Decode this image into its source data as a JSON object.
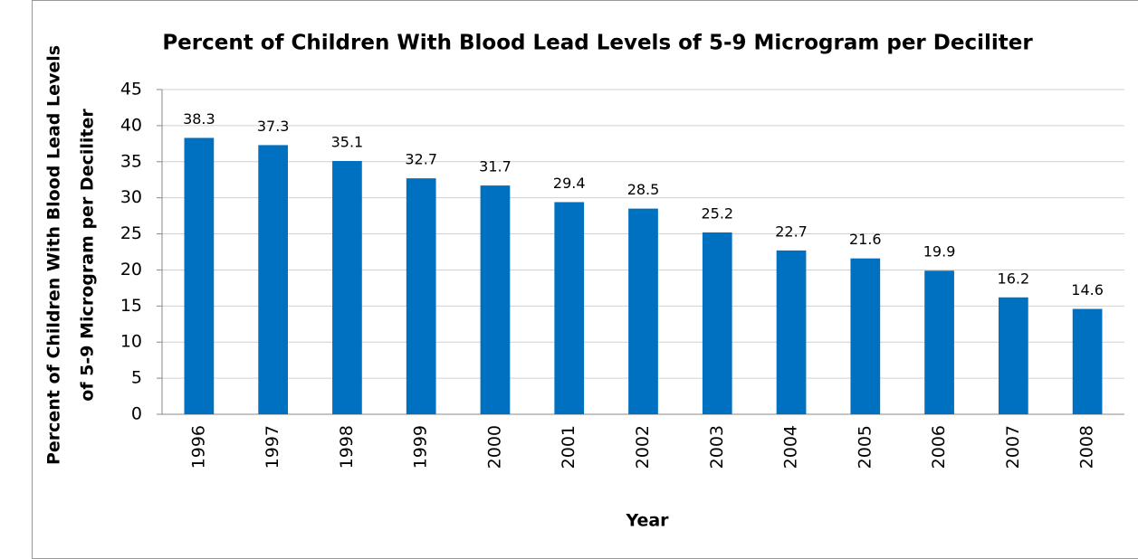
{
  "chart_data": {
    "type": "bar",
    "title": "Percent of Children With Blood Lead Levels of 5-9 Microgram per Deciliter",
    "ylabel": [
      "Percent of Children With Blood Lead Levels",
      "of 5-9 Microgram per Deciliter"
    ],
    "xlabel": "Year",
    "categories": [
      "1996",
      "1997",
      "1998",
      "1999",
      "2000",
      "2001",
      "2002",
      "2003",
      "2004",
      "2005",
      "2006",
      "2007",
      "2008"
    ],
    "values": [
      38.3,
      37.3,
      35.1,
      32.7,
      31.7,
      29.4,
      28.5,
      25.2,
      22.7,
      21.6,
      19.9,
      16.2,
      14.6
    ],
    "color": "#0070c0",
    "ylim": [
      0,
      45
    ],
    "yticks": [
      0,
      5,
      10,
      15,
      20,
      25,
      30,
      35,
      40,
      45
    ],
    "grid": true
  }
}
